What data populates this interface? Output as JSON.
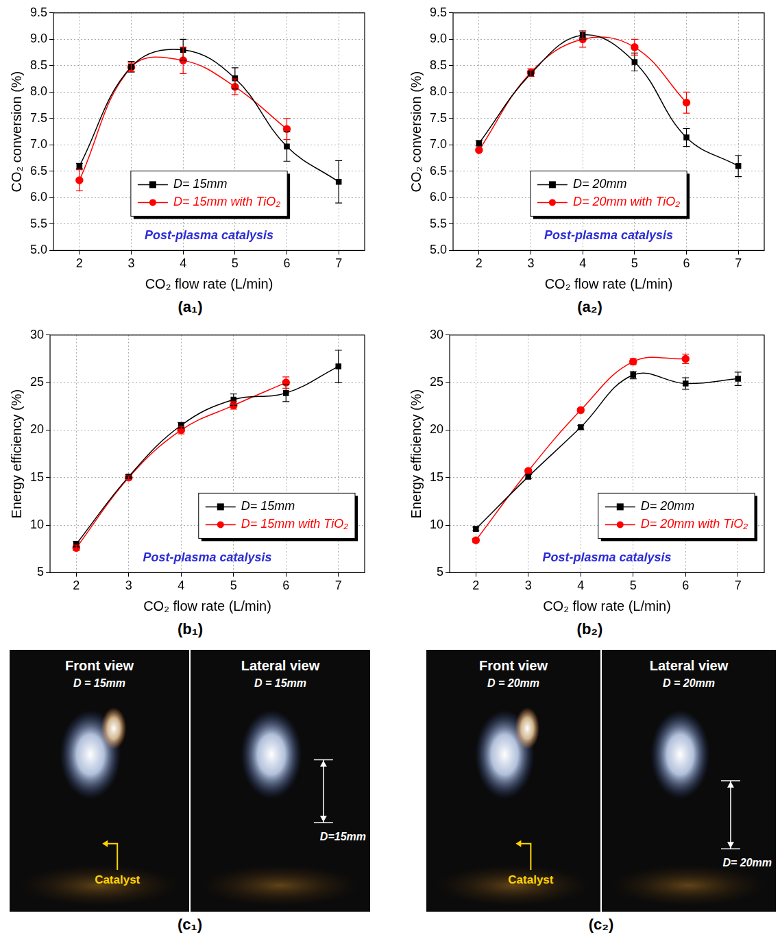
{
  "chart_data": [
    {
      "type": "line",
      "panel": "(a₁)",
      "x_label": "CO₂ flow rate (L/min)",
      "y_label": "CO₂ conversion (%)",
      "annotation": "Post-plasma catalysis",
      "x": [
        2,
        3,
        4,
        5,
        6,
        7
      ],
      "series": [
        {
          "name": "D= 15mm",
          "color": "#000000",
          "marker": "square",
          "line_style": "solid",
          "values": [
            6.6,
            8.48,
            8.8,
            8.26,
            6.97,
            6.3
          ],
          "errors": [
            0.05,
            0.1,
            0.2,
            0.2,
            0.28,
            0.4
          ]
        },
        {
          "name": "D= 15mm with TiO₂",
          "color": "#ff0000",
          "marker": "circle",
          "line_style": "solid",
          "values": [
            6.33,
            8.47,
            8.6,
            8.1,
            7.3,
            null
          ],
          "errors": [
            0.2,
            0.08,
            0.25,
            0.15,
            0.2,
            null
          ]
        }
      ],
      "xlim": [
        1.5,
        7.5
      ],
      "xticks": [
        2,
        3,
        4,
        5,
        6,
        7
      ],
      "ylim": [
        5,
        9.5
      ],
      "yticks": [
        {
          "value": 5,
          "label": "5.0"
        },
        5.5,
        {
          "value": 6,
          "label": "6.0"
        },
        6.5,
        {
          "value": 7,
          "label": "7.0"
        },
        7.5,
        {
          "value": 8,
          "label": "8.0"
        },
        8.5,
        {
          "value": 9,
          "label": "9.0"
        },
        9.5
      ],
      "grid": true,
      "legend": "lower center"
    },
    {
      "type": "line",
      "panel": "(a₂)",
      "x_label": "CO₂ flow rate (L/min)",
      "y_label": "CO₂ conversion (%)",
      "annotation": "Post-plasma catalysis",
      "x": [
        2,
        3,
        4,
        5,
        6,
        7
      ],
      "series": [
        {
          "name": "D= 20mm",
          "color": "#000000",
          "marker": "square",
          "line_style": "solid",
          "values": [
            7.03,
            8.35,
            9.08,
            8.57,
            7.14,
            6.6
          ],
          "errors": [
            0.05,
            0.05,
            0.08,
            0.17,
            0.17,
            0.2
          ]
        },
        {
          "name": "D= 20mm with TiO₂",
          "color": "#ff0000",
          "marker": "circle",
          "line_style": "solid",
          "values": [
            6.9,
            8.37,
            9.0,
            8.85,
            7.8,
            null
          ],
          "errors": [
            0.03,
            0.07,
            0.15,
            0.15,
            0.2,
            null
          ]
        }
      ],
      "xlim": [
        1.5,
        7.5
      ],
      "xticks": [
        2,
        3,
        4,
        5,
        6,
        7
      ],
      "ylim": [
        5,
        9.5
      ],
      "yticks": [
        {
          "value": 5,
          "label": "5.0"
        },
        5.5,
        {
          "value": 6,
          "label": "6.0"
        },
        6.5,
        {
          "value": 7,
          "label": "7.0"
        },
        7.5,
        {
          "value": 8,
          "label": "8.0"
        },
        8.5,
        {
          "value": 9,
          "label": "9.0"
        },
        9.5
      ],
      "grid": true,
      "legend": "lower center"
    },
    {
      "type": "line",
      "panel": "(b₁)",
      "x_label": "CO₂ flow rate (L/min)",
      "y_label": "Energy efficiency (%)",
      "annotation": "Post-plasma catalysis",
      "x": [
        2,
        3,
        4,
        5,
        6,
        7
      ],
      "series": [
        {
          "name": "D= 15mm",
          "color": "#000000",
          "marker": "square",
          "line_style": "solid",
          "values": [
            8.0,
            15.1,
            20.5,
            23.2,
            23.9,
            26.7
          ],
          "errors": [
            0.3,
            0.2,
            0.3,
            0.6,
            0.9,
            1.7
          ]
        },
        {
          "name": "D= 15mm with TiO₂",
          "color": "#ff0000",
          "marker": "circle",
          "line_style": "solid",
          "values": [
            7.6,
            15.0,
            20.0,
            22.6,
            25.0,
            null
          ],
          "errors": [
            0.3,
            0.2,
            0.4,
            0.4,
            0.6,
            null
          ]
        }
      ],
      "xlim": [
        1.5,
        7.5
      ],
      "xticks": [
        2,
        3,
        4,
        5,
        6,
        7
      ],
      "ylim": [
        5,
        30
      ],
      "yticks": [
        5,
        10,
        15,
        20,
        25,
        30
      ],
      "grid": true,
      "legend": "lower right"
    },
    {
      "type": "line",
      "panel": "(b₂)",
      "x_label": "CO₂ flow rate (L/min)",
      "y_label": "Energy efficiency (%)",
      "annotation": "Post-plasma catalysis",
      "x": [
        2,
        3,
        4,
        5,
        6,
        7
      ],
      "series": [
        {
          "name": "D= 20mm",
          "color": "#000000",
          "marker": "square",
          "line_style": "solid",
          "values": [
            9.6,
            15.1,
            20.3,
            25.8,
            24.9,
            25.4
          ],
          "errors": [
            0.2,
            0.2,
            0.2,
            0.4,
            0.6,
            0.7
          ]
        },
        {
          "name": "D= 20mm with TiO₂",
          "color": "#ff0000",
          "marker": "circle",
          "line_style": "solid",
          "values": [
            8.4,
            15.7,
            22.1,
            27.2,
            27.5,
            null
          ],
          "errors": [
            0.2,
            0.2,
            0.2,
            0.3,
            0.5,
            null
          ]
        }
      ],
      "xlim": [
        1.5,
        7.5
      ],
      "xticks": [
        2,
        3,
        4,
        5,
        6,
        7
      ],
      "ylim": [
        5,
        30
      ],
      "yticks": [
        5,
        10,
        15,
        20,
        25,
        30
      ],
      "grid": true,
      "legend": "lower right"
    }
  ],
  "photos": [
    {
      "panel": "(c₁)",
      "views": [
        {
          "title": "Front view",
          "subtitle": "D = 15mm",
          "annotation": "Catalyst"
        },
        {
          "title": "Lateral view",
          "subtitle": "D = 15mm",
          "dimension": "D=15mm"
        }
      ]
    },
    {
      "panel": "(c₂)",
      "views": [
        {
          "title": "Front view",
          "subtitle": "D = 20mm",
          "annotation": "Catalyst"
        },
        {
          "title": "Lateral view",
          "subtitle": "D = 20mm",
          "dimension": "D= 20mm"
        }
      ]
    }
  ]
}
